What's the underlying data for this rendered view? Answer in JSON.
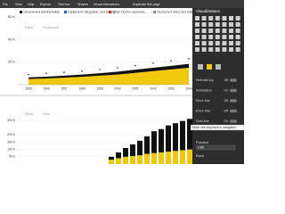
{
  "toolbar": {
    "items": [
      "File",
      "View",
      "Help",
      "Explore",
      "Text box",
      "Shapes",
      "Visual interactions",
      "Duplicate this page"
    ]
  },
  "top_chart": {
    "type": "area",
    "legend": [
      {
        "text": "General and administrative",
        "color": "#111111"
      },
      {
        "text": "Equipment, integration, and testing",
        "color": "#1f5fbf"
      },
      {
        "text": "Other income expenses, ...",
        "color": "#d62728"
      },
      {
        "text": "Noncurrent direct and indirect for common elements",
        "color": "#8c8c8c"
      }
    ],
    "actions": [
      "Back",
      "Download"
    ],
    "x_labels": [
      "1995",
      "1996",
      "1997",
      "1998",
      "1999",
      "2000",
      "2001",
      "2002",
      "2003",
      "2004"
    ],
    "series": [
      {
        "color": "#f2c80f",
        "values": [
          5000,
          5500,
          6200,
          7000,
          8000,
          9000,
          10500,
          12000,
          13500,
          15000
        ]
      },
      {
        "color": "#111111",
        "values": [
          1500,
          1600,
          1800,
          2000,
          2200,
          2500,
          2800,
          3000,
          3200,
          3500
        ]
      }
    ],
    "points": {
      "color": "#555555",
      "values": [
        9000,
        10000,
        11000,
        12000,
        13500,
        15000,
        17000,
        19000,
        21000,
        23000
      ]
    },
    "ylim": [
      0,
      66000
    ],
    "yticks": [
      {
        "value": 20000,
        "label": "20 K"
      },
      {
        "value": 40000,
        "label": "40 K"
      },
      {
        "value": 60000,
        "label": "60 K"
      }
    ]
  },
  "bottom_chart": {
    "type": "bar",
    "actions": [
      "Back",
      "Next"
    ],
    "series": [
      {
        "color": "#f2c80f",
        "values": [
          30000,
          40000,
          50000,
          55000,
          60000,
          70000,
          75000,
          80000,
          85000,
          90000,
          95000,
          100000
        ]
      },
      {
        "color": "#111111",
        "values": [
          20000,
          40000,
          60000,
          80000,
          100000,
          120000,
          150000,
          160000,
          180000,
          190000,
          200000,
          210000
        ]
      }
    ],
    "ylim": [
      0,
      330000
    ],
    "yticks": [
      {
        "value": 50000,
        "label": "50 K"
      },
      {
        "value": 100000,
        "label": "100 K"
      },
      {
        "value": 150000,
        "label": "150 K"
      },
      {
        "value": 200000,
        "label": "200 K"
      },
      {
        "value": 300000,
        "label": "300 K"
      }
    ]
  },
  "panel": {
    "title": "Visualizations",
    "settings": [
      {
        "label": "Rebuild Up",
        "state": "Off"
      },
      {
        "label": "Animation",
        "state": "On"
      },
      {
        "label": "Error bar",
        "state": "Off"
      },
      {
        "label": "Error line",
        "state": "Off"
      },
      {
        "label": "Grid line",
        "state": "On"
      }
    ],
    "tooltip": "Move one step back in navigation",
    "position": {
      "label": "Position",
      "value": "Left"
    },
    "button": "Back"
  }
}
